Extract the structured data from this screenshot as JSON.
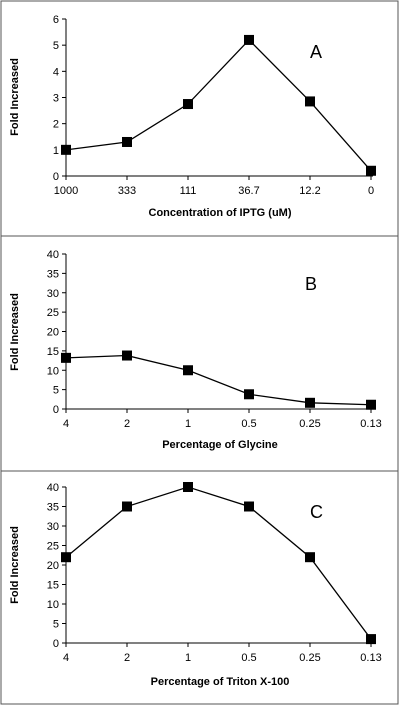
{
  "chart_data": [
    {
      "type": "line",
      "panel_label": "A",
      "categories": [
        "1000",
        "333",
        "111",
        "36.7",
        "12.2",
        "0"
      ],
      "series": [
        {
          "values": [
            1.0,
            1.3,
            2.75,
            5.2,
            2.85,
            0.2
          ]
        }
      ],
      "xlabel": "Concentration of IPTG (uM)",
      "ylabel": "Fold Increased",
      "ylim": [
        0,
        6
      ],
      "yticks": [
        "0",
        "1",
        "2",
        "3",
        "4",
        "5",
        "6"
      ],
      "grid": false,
      "marker": "square",
      "color": "#000000"
    },
    {
      "type": "line",
      "panel_label": "B",
      "categories": [
        "4",
        "2",
        "1",
        "0.5",
        "0.25",
        "0.13"
      ],
      "series": [
        {
          "values": [
            13.2,
            13.8,
            10.0,
            3.8,
            1.6,
            1.1
          ]
        }
      ],
      "xlabel": "Percentage of Glycine",
      "ylabel": "Fold Increased",
      "ylim": [
        0,
        40
      ],
      "yticks": [
        "0",
        "5",
        "10",
        "15",
        "20",
        "25",
        "30",
        "35",
        "40"
      ],
      "grid": false,
      "marker": "square",
      "color": "#000000"
    },
    {
      "type": "line",
      "panel_label": "C",
      "categories": [
        "4",
        "2",
        "1",
        "0.5",
        "0.25",
        "0.13"
      ],
      "series": [
        {
          "values": [
            22,
            35,
            40,
            35,
            22,
            1
          ]
        }
      ],
      "xlabel": "Percentage of Triton X-100",
      "ylabel": "Fold Increased",
      "ylim": [
        0,
        40
      ],
      "yticks": [
        "0",
        "5",
        "10",
        "15",
        "20",
        "25",
        "30",
        "35",
        "40"
      ],
      "grid": false,
      "marker": "square",
      "color": "#000000"
    }
  ]
}
